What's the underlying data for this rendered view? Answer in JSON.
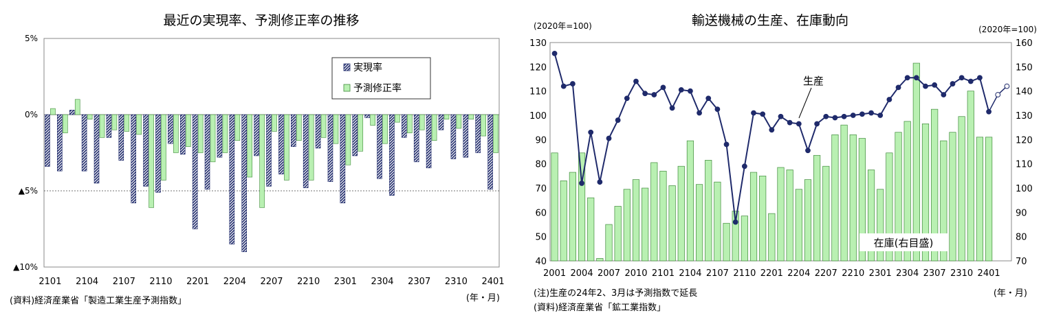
{
  "chart_data": [
    {
      "type": "bar",
      "title": "最近の実現率、予測修正率の推移",
      "y_tick_labels": [
        "5%",
        "0%",
        "▲5%",
        "▲10%"
      ],
      "y_tick_values": [
        5,
        0,
        -5,
        -10
      ],
      "ylim": [
        -10,
        5
      ],
      "x_tick_labels": [
        "2101",
        "2104",
        "2107",
        "2110",
        "2201",
        "2204",
        "2207",
        "2210",
        "2301",
        "2304",
        "2307",
        "2310",
        "2401"
      ],
      "x_unit": "(年・月)",
      "source": "(資料)経済産業省「製造工業生産予測指数」",
      "legend_position": "top-right",
      "colors": {
        "actual": "#1f2a6b",
        "revision": "#b9f0b2",
        "revision_border": "#3f8a3a"
      },
      "series": [
        {
          "name": "実現率",
          "values": [
            -3.4,
            -3.7,
            0.3,
            -3.7,
            -4.5,
            -1.5,
            -3.0,
            -5.8,
            -4.7,
            -5.1,
            -1.9,
            -2.6,
            -7.5,
            -4.9,
            -2.8,
            -8.5,
            -9.0,
            -2.7,
            -4.7,
            -3.9,
            -2.1,
            -4.8,
            -2.2,
            -4.4,
            -5.8,
            -2.7,
            -0.2,
            -4.2,
            -5.3,
            -1.5,
            -3.1,
            -3.5,
            -1.0,
            -2.9,
            -2.8,
            -2.5,
            -4.9
          ]
        },
        {
          "name": "予測修正率",
          "values": [
            0.4,
            -1.2,
            1.0,
            -0.3,
            -1.5,
            -1.0,
            -1.1,
            -1.3,
            -6.1,
            -4.3,
            -2.5,
            -2.1,
            -2.5,
            -3.1,
            -2.5,
            -1.7,
            -4.1,
            -6.1,
            -1.1,
            -4.3,
            -1.7,
            -4.3,
            -1.5,
            -1.9,
            -3.3,
            -2.4,
            -0.7,
            -1.9,
            -0.5,
            -1.2,
            -1.0,
            -1.7,
            -0.3,
            -0.9,
            -0.3,
            -1.4,
            -2.5
          ]
        }
      ]
    },
    {
      "type": "bar+line",
      "title": "輸送機械の生産、在庫動向",
      "left_axis_unit": "(2020年=100)",
      "right_axis_unit": "(2020年=100)",
      "y_left_ticks": [
        40,
        50,
        60,
        70,
        80,
        90,
        100,
        110,
        120,
        130
      ],
      "y_right_ticks": [
        70,
        80,
        90,
        100,
        110,
        120,
        130,
        140,
        150,
        160
      ],
      "ylim_left": [
        40,
        130
      ],
      "ylim_right": [
        70,
        160
      ],
      "x_tick_labels": [
        "2001",
        "2004",
        "2007",
        "2010",
        "2101",
        "2104",
        "2107",
        "2110",
        "2201",
        "2204",
        "2207",
        "2210",
        "2301",
        "2304",
        "2307",
        "2310",
        "2401"
      ],
      "x_unit": "(年・月)",
      "line_label": "生産",
      "bar_label": "在庫(右目盛)",
      "note": "(注)生産の24年2、3月は予測指数で延長",
      "source": "(資料)経済産業省「鉱工業指数」",
      "colors": {
        "production": "#1f2a6b",
        "inventory": "#b9f0b2",
        "inventory_border": "#3f8a3a"
      },
      "series": [
        {
          "name": "生産",
          "axis": "left",
          "values": [
            125.5,
            112,
            113,
            72,
            93,
            72.5,
            90.5,
            98,
            107,
            114,
            109,
            108.5,
            111.5,
            103,
            110.5,
            110,
            101,
            107,
            102.5,
            88,
            56,
            79,
            101,
            100.5,
            94,
            99.5,
            97,
            96.5,
            85.5,
            96.5,
            99.5,
            99,
            99.5,
            100,
            100.5,
            101,
            100,
            106.5,
            111.5,
            115.5,
            115.5,
            112,
            112.5,
            108.5,
            113,
            115.5,
            114,
            115.5,
            101.5,
            108.5,
            112
          ],
          "forecast_points": 2
        },
        {
          "name": "在庫",
          "axis": "right",
          "values": [
            114.5,
            103,
            106.5,
            114.5,
            96,
            71,
            85,
            92.5,
            99.5,
            103.5,
            100,
            110.5,
            107,
            101,
            109,
            119.5,
            101.5,
            111.5,
            102.5,
            85.5,
            90.5,
            88.5,
            106.5,
            105,
            89.5,
            108.5,
            107.5,
            99.5,
            103.5,
            113.5,
            109,
            122,
            126,
            122,
            120.5,
            107.5,
            99.5,
            114.5,
            123,
            127.5,
            151.5,
            126.5,
            132.5,
            119.5,
            123,
            129.5,
            140,
            121,
            121
          ]
        }
      ]
    }
  ]
}
